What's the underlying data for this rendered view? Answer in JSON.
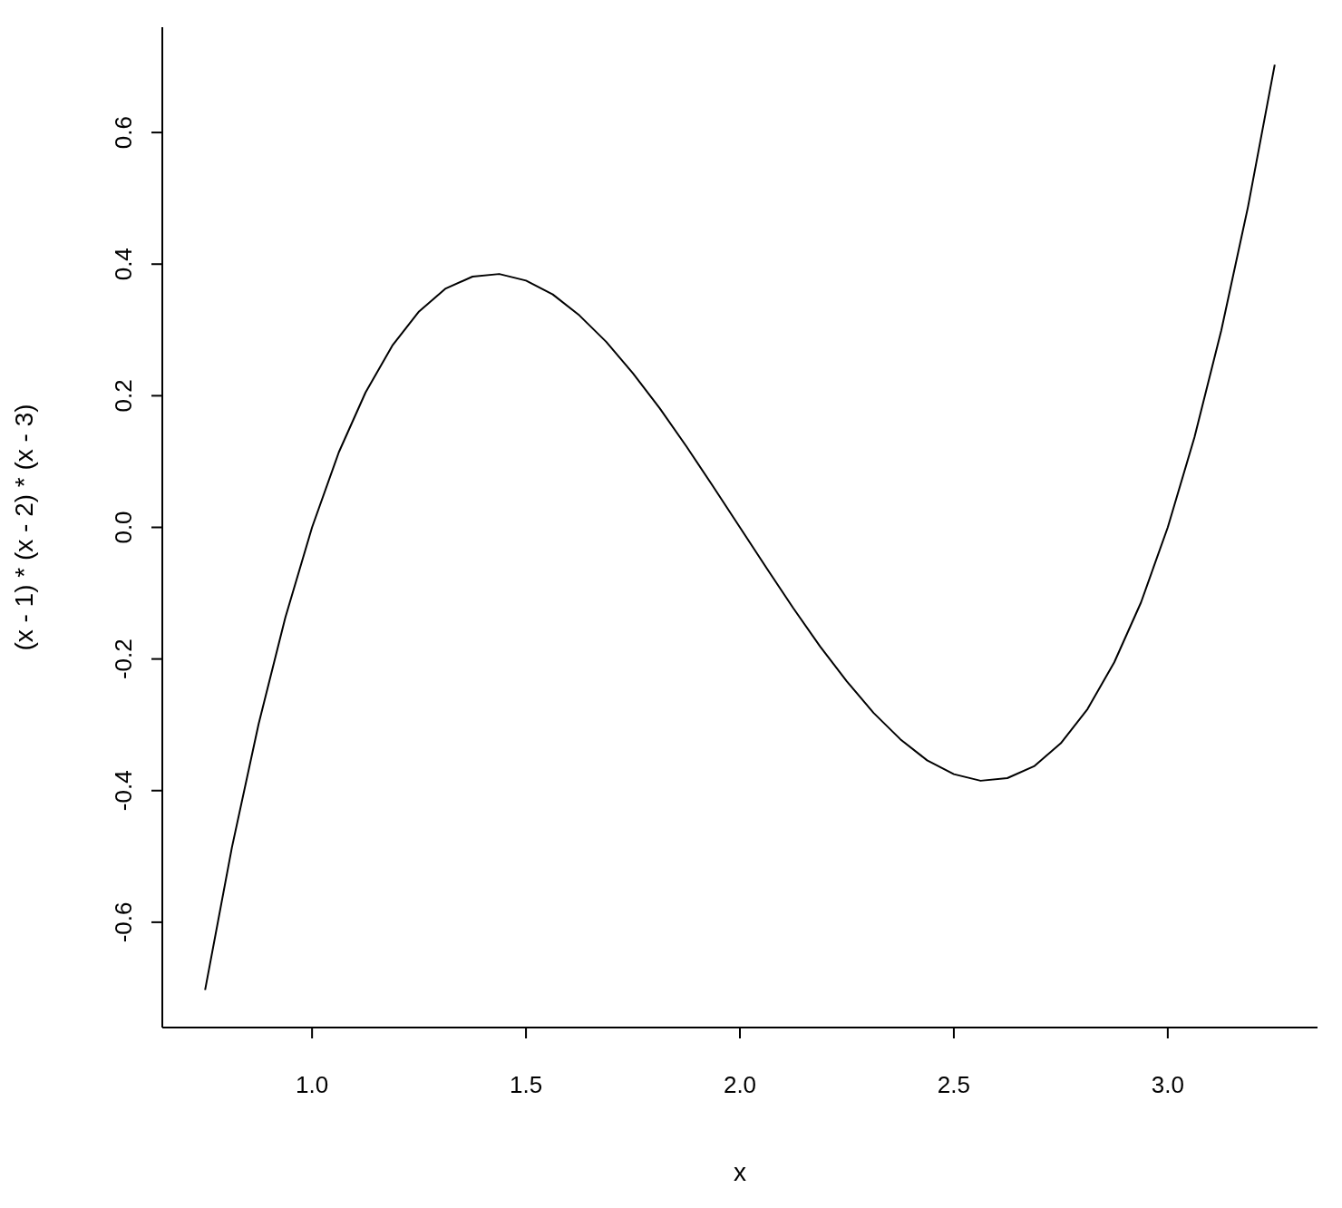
{
  "chart_data": {
    "type": "line",
    "xlabel": "x",
    "ylabel": "(x - 1) * (x - 2) * (x - 3)",
    "x": [
      0.75,
      0.8125,
      0.875,
      0.9375,
      1.0,
      1.0625,
      1.125,
      1.1875,
      1.25,
      1.3125,
      1.375,
      1.4375,
      1.5,
      1.5625,
      1.625,
      1.6875,
      1.75,
      1.8125,
      1.875,
      1.9375,
      2.0,
      2.0625,
      2.125,
      2.1875,
      2.25,
      2.3125,
      2.375,
      2.4375,
      2.5,
      2.5625,
      2.625,
      2.6875,
      2.75,
      2.8125,
      2.875,
      2.9375,
      3.0,
      3.0625,
      3.125,
      3.1875,
      3.25
    ],
    "series": [
      {
        "color": "#000000",
        "values": [
          -0.703,
          -0.487,
          -0.299,
          -0.137,
          0,
          0.114,
          0.205,
          0.276,
          0.328,
          0.363,
          0.381,
          0.385,
          0.375,
          0.354,
          0.322,
          0.282,
          0.234,
          0.181,
          0.123,
          0.062,
          0,
          -0.062,
          -0.123,
          -0.181,
          -0.234,
          -0.282,
          -0.322,
          -0.354,
          -0.375,
          -0.385,
          -0.381,
          -0.363,
          -0.328,
          -0.276,
          -0.205,
          -0.114,
          0,
          0.137,
          0.299,
          0.487,
          0.703
        ]
      }
    ],
    "xlim": [
      0.65,
      3.35
    ],
    "ylim": [
      -0.76,
      0.76
    ],
    "xticks": [
      {
        "value": 1,
        "label": "1.0"
      },
      {
        "value": 1.5,
        "label": "1.5"
      },
      {
        "value": 2,
        "label": "2.0"
      },
      {
        "value": 2.5,
        "label": "2.5"
      },
      {
        "value": 3,
        "label": "3.0"
      }
    ],
    "yticks": [
      {
        "value": -0.6,
        "label": "-0.6"
      },
      {
        "value": -0.4,
        "label": "-0.4"
      },
      {
        "value": -0.2,
        "label": "-0.2"
      },
      {
        "value": 0,
        "label": "0.0"
      },
      {
        "value": 0.2,
        "label": "0.2"
      },
      {
        "value": 0.4,
        "label": "0.4"
      },
      {
        "value": 0.6,
        "label": "0.6"
      }
    ],
    "grid": false,
    "legend": false,
    "marker": "none",
    "line_style": "solid"
  }
}
